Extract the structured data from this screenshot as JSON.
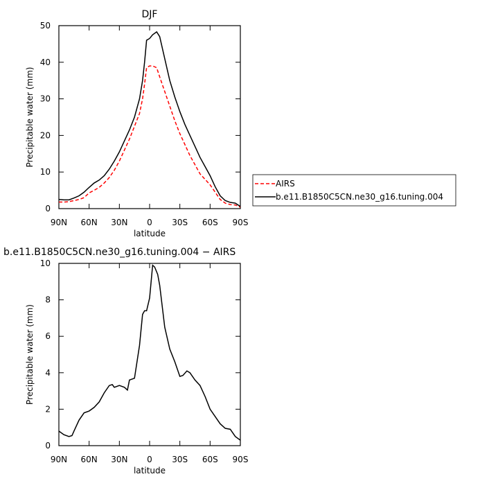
{
  "chart_data": [
    {
      "type": "line",
      "title": "DJF",
      "xlabel": "latitude",
      "ylabel": "Precipitable water (mm)",
      "x": [
        90,
        85,
        80,
        75,
        70,
        65,
        60,
        55,
        50,
        45,
        40,
        35,
        30,
        25,
        20,
        15,
        10,
        7,
        5,
        3,
        0,
        -3,
        -7,
        -10,
        -15,
        -20,
        -25,
        -30,
        -35,
        -40,
        -45,
        -50,
        -55,
        -60,
        -65,
        -70,
        -75,
        -80,
        -85,
        -90
      ],
      "series": [
        {
          "name": "AIRS",
          "color": "#ff0000",
          "dash": true,
          "values": [
            1.8,
            1.8,
            1.9,
            2.2,
            2.5,
            3,
            4.3,
            5,
            5.8,
            7,
            8.5,
            10.5,
            13,
            16,
            19,
            22.5,
            26,
            30,
            34,
            38.5,
            39,
            39,
            38.5,
            36,
            32,
            28,
            24,
            20.5,
            17.5,
            14.5,
            12,
            9.5,
            8,
            6.5,
            4.5,
            2.5,
            1.5,
            1.1,
            1,
            0.4
          ]
        },
        {
          "name": "b.e11.B1850C5CN.ne30_g16.tuning.004",
          "color": "#000000",
          "dash": false,
          "values": [
            2.5,
            2.4,
            2.4,
            2.9,
            3.5,
            4.5,
            5.8,
            7,
            7.8,
            9,
            10.8,
            13,
            15.5,
            18.5,
            21.5,
            25,
            30,
            35,
            40,
            46,
            46.5,
            47.5,
            48.3,
            47,
            41,
            35,
            30.5,
            26.5,
            23,
            20,
            17,
            14,
            11.5,
            9,
            6,
            3.5,
            2.2,
            1.7,
            1.5,
            0.6
          ]
        }
      ],
      "xlim": [
        90,
        -90
      ],
      "xticks": [
        {
          "value": 90,
          "label": "90N"
        },
        {
          "value": 60,
          "label": "60N"
        },
        {
          "value": 30,
          "label": "30N"
        },
        0,
        {
          "value": -30,
          "label": "30S"
        },
        {
          "value": -60,
          "label": "60S"
        },
        {
          "value": -90,
          "label": "90S"
        }
      ],
      "ylim": [
        0,
        50
      ],
      "yticks": [
        0,
        10,
        20,
        30,
        40,
        50
      ],
      "legend": "right"
    },
    {
      "type": "line",
      "title": "b.e11.B1850C5CN.ne30_g16.tuning.004 − AIRS",
      "xlabel": "latitude",
      "ylabel": "Precipitable water (mm)",
      "x": [
        90,
        85,
        80,
        77,
        75,
        70,
        65,
        60,
        55,
        50,
        45,
        40,
        37,
        35,
        30,
        25,
        22,
        20,
        15,
        10,
        7,
        5,
        3,
        0,
        -3,
        -5,
        -8,
        -10,
        -15,
        -20,
        -25,
        -30,
        -33,
        -37,
        -40,
        -45,
        -50,
        -55,
        -60,
        -65,
        -70,
        -75,
        -80,
        -85,
        -90
      ],
      "series": [
        {
          "color": "#000000",
          "dash": false,
          "values": [
            0.8,
            0.6,
            0.5,
            0.55,
            0.8,
            1.4,
            1.8,
            1.9,
            2.1,
            2.4,
            2.9,
            3.3,
            3.35,
            3.2,
            3.3,
            3.2,
            3.05,
            3.6,
            3.7,
            5.5,
            7.2,
            7.4,
            7.4,
            8.1,
            9.9,
            9.8,
            9.4,
            8.8,
            6.5,
            5.3,
            4.6,
            3.8,
            3.85,
            4.1,
            4.0,
            3.6,
            3.3,
            2.7,
            2.0,
            1.6,
            1.2,
            0.95,
            0.9,
            0.5,
            0.3
          ]
        }
      ],
      "xlim": [
        90,
        -90
      ],
      "xticks": [
        {
          "value": 90,
          "label": "90N"
        },
        {
          "value": 60,
          "label": "60N"
        },
        {
          "value": 30,
          "label": "30N"
        },
        0,
        {
          "value": -30,
          "label": "30S"
        },
        {
          "value": -60,
          "label": "60S"
        },
        {
          "value": -90,
          "label": "90S"
        }
      ],
      "ylim": [
        0,
        10
      ],
      "yticks": [
        0,
        2,
        4,
        6,
        8,
        10
      ]
    }
  ]
}
